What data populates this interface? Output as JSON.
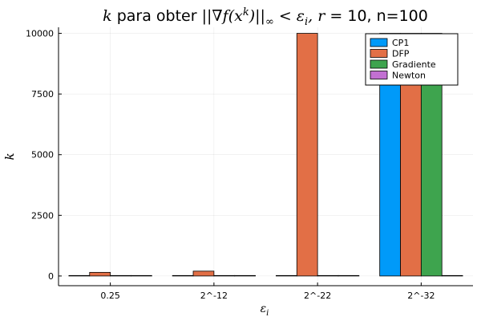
{
  "chart_data": {
    "type": "bar",
    "title_parts": {
      "k": "k",
      "mid": " para obter ",
      "norm_open": "||",
      "nabla_f": "∇f(x",
      "sup_k": "k",
      "close": ")",
      "norm_close": "||",
      "sub_inf": "∞",
      "lt": " < ",
      "eps": "ε",
      "sub_i": "i",
      "comma": ", ",
      "r": "r",
      "eq": " = ",
      "tail": "10, n=100"
    },
    "xlabel": "ε",
    "xlabel_sub": "i",
    "ylabel": "k",
    "categories": [
      "0.25",
      "2^-12",
      "2^-22",
      "2^-32"
    ],
    "ylim": [
      -400,
      10250
    ],
    "yticks": [
      0,
      2500,
      5000,
      7500,
      10000
    ],
    "ytick_labels": [
      "0",
      "2500",
      "5000",
      "7500",
      "10000"
    ],
    "grid": true,
    "legend_position": "top-right",
    "series": [
      {
        "name": "CP1",
        "color": "#009af9",
        "values": [
          4,
          5,
          6,
          10000
        ]
      },
      {
        "name": "DFP",
        "color": "#e26f46",
        "values": [
          150,
          200,
          10000,
          10000
        ]
      },
      {
        "name": "Gradiente",
        "color": "#3ea44e",
        "values": [
          3,
          4,
          5,
          10000
        ]
      },
      {
        "name": "Newton",
        "color": "#c270d2",
        "values": [
          2,
          2,
          2,
          2
        ]
      }
    ]
  }
}
